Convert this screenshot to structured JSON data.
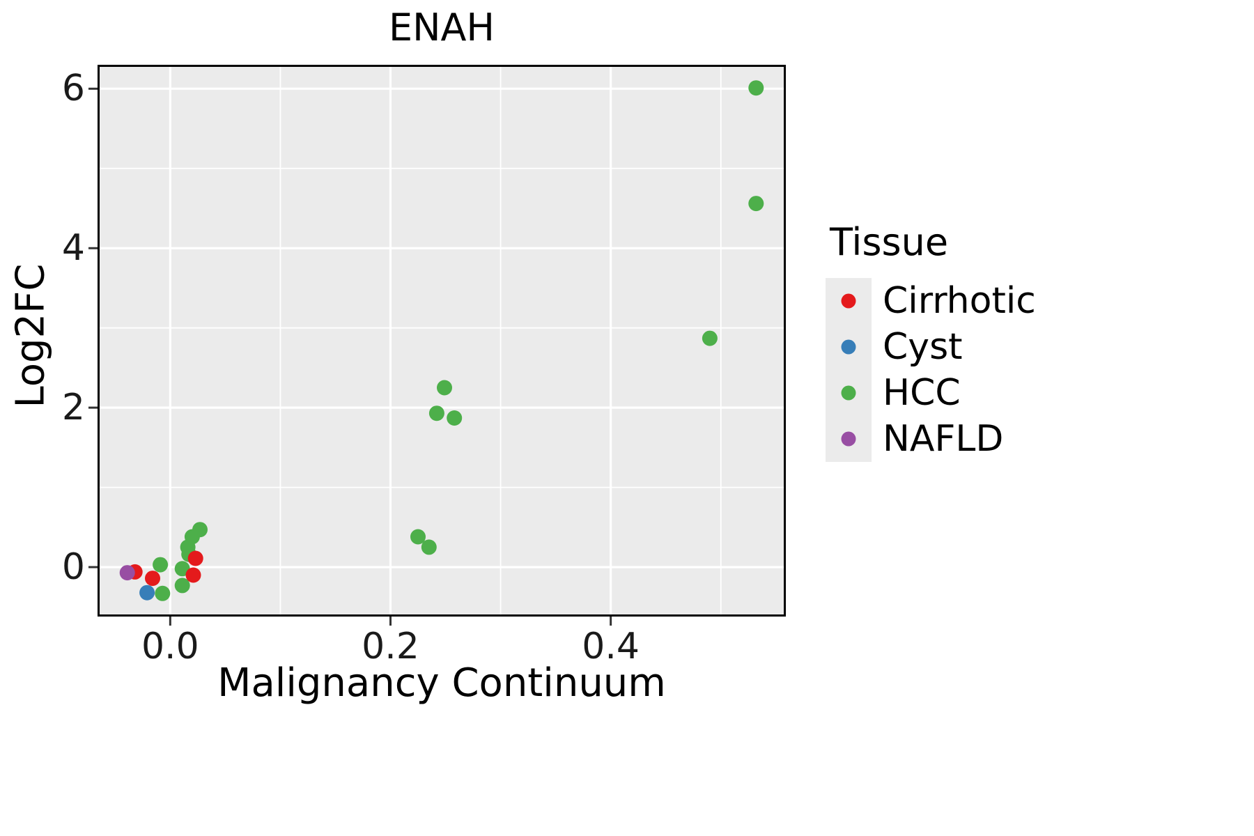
{
  "chart_data": {
    "type": "scatter",
    "title": "ENAH",
    "xlabel": "Malignancy Continuum",
    "ylabel": "Log2FC",
    "xlim": [
      -0.066,
      0.559
    ],
    "ylim": [
      -0.62,
      6.3
    ],
    "x_ticks": {
      "values": [
        0.0,
        0.2,
        0.4
      ],
      "labels": [
        "0.0",
        "0.2",
        "0.4"
      ],
      "minor": [
        0.1,
        0.3,
        0.5
      ]
    },
    "y_ticks": {
      "values": [
        0,
        2,
        4,
        6
      ],
      "labels": [
        "0",
        "2",
        "4",
        "6"
      ],
      "minor": [
        1,
        3,
        5
      ]
    },
    "grid": true,
    "panel_background": "#EBEBEB",
    "grid_color": "#FFFFFF",
    "legend": {
      "title": "Tissue",
      "position": "right"
    },
    "series": [
      {
        "name": "Cirrhotic",
        "color": "#E41A1C",
        "points": [
          [
            -0.032,
            -0.06
          ],
          [
            -0.016,
            -0.14
          ],
          [
            0.023,
            0.11
          ],
          [
            0.021,
            -0.1
          ]
        ]
      },
      {
        "name": "Cyst",
        "color": "#377EB8",
        "points": [
          [
            -0.021,
            -0.32
          ]
        ]
      },
      {
        "name": "HCC",
        "color": "#4DAF4A",
        "points": [
          [
            -0.009,
            0.03
          ],
          [
            -0.007,
            -0.33
          ],
          [
            0.011,
            -0.23
          ],
          [
            0.011,
            -0.02
          ],
          [
            0.016,
            0.25
          ],
          [
            0.017,
            0.16
          ],
          [
            0.02,
            0.38
          ],
          [
            0.027,
            0.47
          ],
          [
            0.225,
            0.38
          ],
          [
            0.235,
            0.25
          ],
          [
            0.242,
            1.93
          ],
          [
            0.249,
            2.25
          ],
          [
            0.258,
            1.87
          ],
          [
            0.49,
            2.87
          ],
          [
            0.532,
            4.56
          ],
          [
            0.532,
            6.01
          ]
        ]
      },
      {
        "name": "NAFLD",
        "color": "#984EA3",
        "points": [
          [
            -0.039,
            -0.07
          ]
        ]
      }
    ]
  }
}
